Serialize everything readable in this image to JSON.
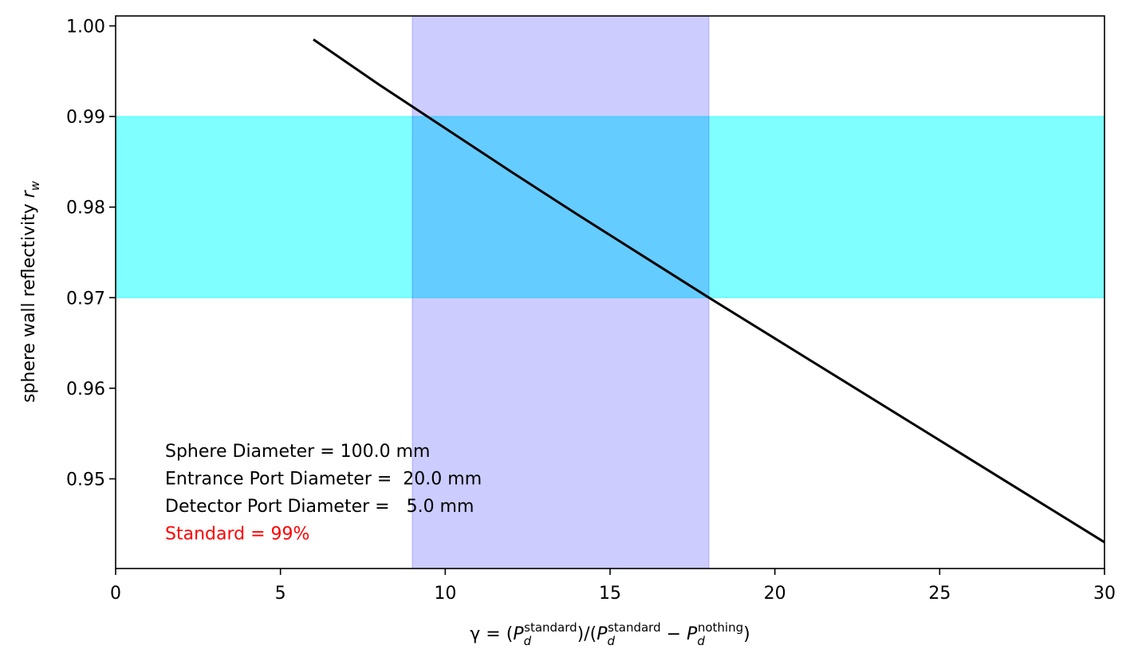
{
  "chart_data": {
    "type": "line",
    "xlabel": [
      "γ = (",
      "P",
      "d",
      "standard",
      ")/(",
      "P",
      "d",
      "standard",
      " − ",
      "P",
      "d",
      "nothing",
      ")"
    ],
    "ylabel": [
      "sphere wall reflectivity ",
      "r",
      "w"
    ],
    "x": [
      6,
      8,
      10,
      12,
      14,
      16,
      18,
      20,
      22,
      24,
      26,
      28,
      30
    ],
    "series": [
      {
        "color": "#000000",
        "values": [
          0.9985,
          0.9935,
          0.9887,
          0.9839,
          0.9792,
          0.9746,
          0.97,
          0.9655,
          0.961,
          0.9565,
          0.952,
          0.9475,
          0.943
        ]
      }
    ],
    "spans": [
      {
        "axis": "y",
        "range": [
          0.97,
          0.99
        ],
        "color": "#00ffff",
        "alpha": 0.5
      },
      {
        "axis": "x",
        "range": [
          9,
          18
        ],
        "color": "#0000ff",
        "alpha": 0.2
      }
    ],
    "xlim": [
      0,
      30
    ],
    "xticks": [
      0,
      5,
      10,
      15,
      20,
      25,
      30
    ],
    "ylim": [
      0.9401,
      1.0011
    ],
    "yticks": [
      0.95,
      0.96,
      0.97,
      0.98,
      0.99,
      {
        "value": 1.0,
        "label": "1.00"
      }
    ],
    "annotations": [
      {
        "text": "Sphere Diameter = 100.0 mm",
        "color": "#000000"
      },
      {
        "text": "Entrance Port Diameter =  20.0 mm",
        "color": "#000000"
      },
      {
        "text": "Detector Port Diameter =   5.0 mm",
        "color": "#000000"
      },
      {
        "text": "Standard = 99%",
        "color": "#ff0000"
      }
    ]
  }
}
